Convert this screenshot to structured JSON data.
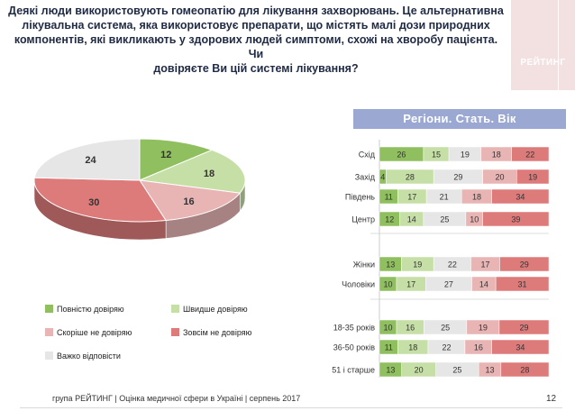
{
  "header": {
    "title_lines": [
      "Деякі люди використовують гомеопатію для лікування захворювань. Це альтернативна",
      "лікувальна система, яка використовує препарати, що містять малі дози природних",
      "компонентів, які викликають у здорових людей симптоми, схожі на хворобу пацієнта. Чи",
      "довіряєте Ви цій системі лікування?"
    ],
    "logo_text": "РЕЙТИНГ",
    "banner": "Регіони. Стать. Вік"
  },
  "footer": {
    "text": "група РЕЙТИНГ | Оцінка медичної сфери в Україні | серпень 2017",
    "page": "12"
  },
  "colors": {
    "c0": "#8fbf5f",
    "c1": "#c6dfa6",
    "c2": "#e6e6e6",
    "c3": "#e8b4b4",
    "c4": "#dd7b7b",
    "pie_light": "#e8b4b4",
    "banner": "#9aa8d2"
  },
  "chart_data": [
    {
      "type": "pie",
      "title": "",
      "categories": [
        "Повністю довіряю",
        "Швидше довіряю",
        "Скоріше не довіряю",
        "Зовсім не довіряю",
        "Важко відповісти"
      ],
      "values": [
        12,
        18,
        16,
        30,
        24
      ],
      "legend": "bottom"
    },
    {
      "type": "bar",
      "stacked": true,
      "orientation": "horizontal",
      "series_names": [
        "Повністю довіряю",
        "Швидше довіряю",
        "Важко відповісти",
        "Скоріше не довіряю",
        "Зовсім не довіряю"
      ],
      "groups": [
        {
          "rows": [
            {
              "label": "Схід",
              "values": [
                26,
                15,
                19,
                18,
                22
              ]
            },
            {
              "label": "Захід",
              "values": [
                4,
                28,
                29,
                20,
                19
              ]
            },
            {
              "label": "Південь",
              "values": [
                11,
                17,
                21,
                18,
                34
              ]
            },
            {
              "label": "Центр",
              "values": [
                12,
                14,
                25,
                10,
                39
              ]
            }
          ]
        },
        {
          "rows": [
            {
              "label": "Жінки",
              "values": [
                13,
                19,
                22,
                17,
                29
              ]
            },
            {
              "label": "Чоловіки",
              "values": [
                10,
                17,
                27,
                14,
                31
              ]
            }
          ]
        },
        {
          "rows": [
            {
              "label": "18-35 років",
              "values": [
                10,
                16,
                25,
                19,
                29
              ]
            },
            {
              "label": "36-50 років",
              "values": [
                11,
                18,
                22,
                16,
                34
              ]
            },
            {
              "label": "51 і старше",
              "values": [
                13,
                20,
                25,
                13,
                28
              ]
            }
          ]
        }
      ]
    }
  ]
}
